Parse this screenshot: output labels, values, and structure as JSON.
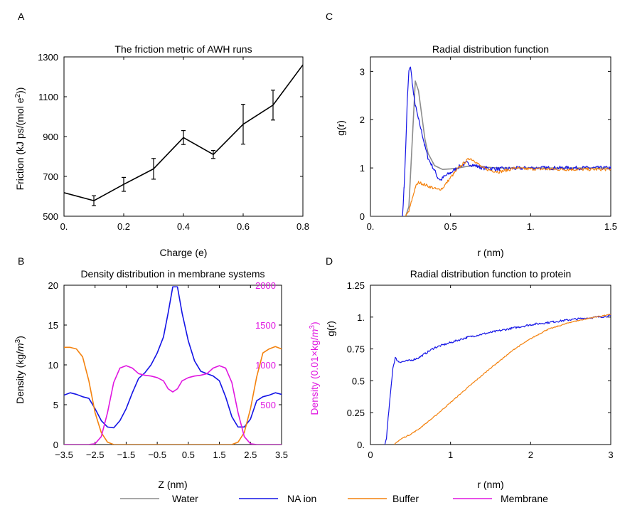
{
  "panels": [
    {
      "letter": "A",
      "chart_data": {
        "type": "line",
        "title": "The friction metric of AWH runs",
        "xlabel": "Charge (e)",
        "ylabel_parts": [
          "Friction (kJ ps/(mol e",
          "2",
          "))"
        ],
        "xlim": [
          0,
          0.8
        ],
        "ylim": [
          500,
          1300
        ],
        "x_ticks": [
          0,
          0.2,
          0.4,
          0.6,
          0.8
        ],
        "x_tick_labels": [
          "0.",
          "0.2",
          "0.4",
          "0.6",
          "0.8"
        ],
        "y_ticks": [
          500,
          700,
          900,
          1100,
          1300
        ],
        "y_tick_labels": [
          "500",
          "700",
          "900",
          "1100",
          "1300"
        ],
        "series": [
          {
            "color": "#000000",
            "x": [
              0,
              0.1,
              0.2,
              0.3,
              0.4,
              0.5,
              0.6,
              0.7,
              0.8
            ],
            "y": [
              618,
              578,
              660,
              738,
              895,
              810,
              962,
              1058,
              1260
            ],
            "err": [
              null,
              25,
              35,
              52,
              35,
              20,
              100,
              75,
              null
            ]
          }
        ]
      }
    },
    {
      "letter": "B",
      "chart_data": {
        "type": "line",
        "title": "Density distribution in membrane systems",
        "xlabel": "Z (nm)",
        "ylabel_parts": [
          "Density (kg/",
          "m",
          "3",
          ")"
        ],
        "y2label_parts": [
          "Density (0.01×kg/",
          "m",
          "3",
          ")"
        ],
        "y2color": "#e016e0",
        "xlim": [
          -3.5,
          3.5
        ],
        "ylim": [
          0,
          20
        ],
        "y2lim": [
          0,
          2000
        ],
        "x_ticks": [
          -3.5,
          -2.5,
          -1.5,
          -0.5,
          0.5,
          1.5,
          2.5,
          3.5
        ],
        "x_tick_labels": [
          "−3.5",
          "−2.5",
          "−1.5",
          "−0.5",
          "0.5",
          "1.5",
          "2.5",
          "3.5"
        ],
        "y_ticks": [
          0,
          5,
          10,
          15,
          20
        ],
        "y_tick_labels": [
          "0",
          "5",
          "10",
          "15",
          "20"
        ],
        "y2_ticks": [
          500,
          1000,
          1500,
          2000
        ],
        "y2_tick_labels": [
          "500",
          "1000",
          "1500",
          "2000"
        ],
        "series": [
          {
            "name": "NA ion",
            "color": "#1414e6",
            "x": [
              -3.5,
              -3.3,
              -3.1,
              -2.9,
              -2.7,
              -2.5,
              -2.3,
              -2.1,
              -1.9,
              -1.7,
              -1.5,
              -1.3,
              -1.1,
              -0.9,
              -0.7,
              -0.5,
              -0.3,
              -0.15,
              0,
              0.15,
              0.3,
              0.5,
              0.7,
              0.9,
              1.1,
              1.3,
              1.5,
              1.7,
              1.9,
              2.1,
              2.3,
              2.5,
              2.7,
              2.9,
              3.1,
              3.3,
              3.5
            ],
            "y": [
              6.2,
              6.5,
              6.3,
              6.0,
              5.8,
              4.5,
              3.0,
              2.2,
              2.1,
              3.0,
              4.5,
              6.5,
              8.3,
              9.0,
              10.0,
              11.5,
              13.5,
              16.5,
              19.8,
              19.8,
              16.5,
              13.0,
              10.5,
              9.2,
              8.9,
              8.6,
              8.0,
              6.0,
              3.5,
              2.2,
              2.2,
              3.2,
              5.5,
              6.0,
              6.2,
              6.5,
              6.3
            ]
          },
          {
            "name": "Buffer",
            "color": "#f4820e",
            "x": [
              -3.5,
              -3.3,
              -3.1,
              -2.9,
              -2.7,
              -2.5,
              -2.3,
              -2.1,
              -1.9,
              -1.7,
              -1.5,
              1.5,
              1.7,
              1.9,
              2.1,
              2.3,
              2.5,
              2.7,
              2.9,
              3.1,
              3.3,
              3.5
            ],
            "y": [
              12.2,
              12.2,
              12.0,
              11.0,
              8.0,
              4.0,
              1.5,
              0.3,
              0.0,
              0.0,
              0.0,
              0.0,
              0.0,
              0.0,
              0.3,
              1.5,
              4.5,
              8.5,
              11.5,
              12.0,
              12.3,
              12.0
            ]
          },
          {
            "name": "Membrane",
            "color": "#e016e0",
            "axis": "right",
            "x": [
              -3.5,
              -3.1,
              -2.7,
              -2.5,
              -2.3,
              -2.1,
              -1.9,
              -1.7,
              -1.5,
              -1.3,
              -1.1,
              -0.9,
              -0.7,
              -0.5,
              -0.3,
              -0.15,
              0,
              0.15,
              0.3,
              0.5,
              0.7,
              0.9,
              1.1,
              1.3,
              1.5,
              1.7,
              1.9,
              2.1,
              2.3,
              2.5,
              2.7,
              3.1,
              3.5
            ],
            "y": [
              0,
              0,
              0,
              10,
              100,
              400,
              780,
              960,
              990,
              960,
              890,
              870,
              860,
              840,
              800,
              700,
              660,
              700,
              800,
              840,
              860,
              870,
              890,
              960,
              990,
              960,
              780,
              400,
              100,
              10,
              0,
              0,
              0
            ]
          }
        ]
      }
    },
    {
      "letter": "C",
      "chart_data": {
        "type": "line",
        "title": "Radial distribution function",
        "xlabel": "r (nm)",
        "ylabel_parts": [
          "g(r)"
        ],
        "xlim": [
          0,
          1.5
        ],
        "ylim": [
          0,
          3.3
        ],
        "x_ticks": [
          0,
          0.5,
          1,
          1.5
        ],
        "x_tick_labels": [
          "0.",
          "0.5",
          "1.",
          "1.5"
        ],
        "y_ticks": [
          0,
          1,
          2,
          3
        ],
        "y_tick_labels": [
          "0",
          "1",
          "2",
          "3"
        ],
        "series": [
          {
            "name": "Water",
            "color": "#8c8c8c",
            "x": [
              0,
              0.22,
              0.24,
              0.26,
              0.28,
              0.3,
              0.32,
              0.34,
              0.36,
              0.4,
              0.45,
              0.5,
              0.55,
              0.6,
              0.65,
              0.7,
              0.8,
              1.0,
              1.2,
              1.5
            ],
            "y": [
              0,
              0,
              0.2,
              1.5,
              2.8,
              2.6,
              2.1,
              1.6,
              1.3,
              1.05,
              0.97,
              0.98,
              1.0,
              1.03,
              1.05,
              1.02,
              1.0,
              1.0,
              1.0,
              1.0
            ]
          },
          {
            "name": "NA ion",
            "color": "#1414e6",
            "noise": 0.04,
            "x": [
              0.2,
              0.21,
              0.22,
              0.23,
              0.24,
              0.25,
              0.26,
              0.27,
              0.28,
              0.3,
              0.32,
              0.34,
              0.36,
              0.4,
              0.42,
              0.44,
              0.46,
              0.5,
              0.55,
              0.6,
              0.65,
              0.7,
              0.8,
              1.0,
              1.2,
              1.5
            ],
            "y": [
              0,
              0.6,
              1.4,
              2.4,
              3.0,
              3.1,
              2.8,
              2.5,
              2.3,
              2.0,
              1.75,
              1.45,
              1.2,
              0.95,
              0.8,
              0.75,
              0.82,
              0.9,
              1.02,
              1.1,
              1.05,
              1.0,
              0.98,
              1.0,
              1.0,
              1.0
            ]
          },
          {
            "name": "Buffer",
            "color": "#f4820e",
            "noise": 0.03,
            "x": [
              0.22,
              0.24,
              0.26,
              0.28,
              0.3,
              0.32,
              0.34,
              0.38,
              0.42,
              0.45,
              0.5,
              0.55,
              0.6,
              0.62,
              0.65,
              0.7,
              0.75,
              0.8,
              0.85,
              0.9,
              0.95,
              1.0,
              1.2,
              1.5
            ],
            "y": [
              0,
              0.1,
              0.35,
              0.6,
              0.7,
              0.68,
              0.65,
              0.6,
              0.55,
              0.58,
              0.8,
              1.0,
              1.15,
              1.2,
              1.15,
              1.0,
              0.95,
              0.92,
              0.95,
              1.0,
              0.98,
              0.98,
              0.97,
              0.97
            ]
          }
        ]
      }
    },
    {
      "letter": "D",
      "chart_data": {
        "type": "line",
        "title": "Radial distribution function to protein",
        "xlabel": "r (nm)",
        "ylabel_parts": [
          "g(r)"
        ],
        "xlim": [
          0,
          3
        ],
        "ylim": [
          0,
          1.25
        ],
        "x_ticks": [
          0,
          1,
          2,
          3
        ],
        "x_tick_labels": [
          "0",
          "1",
          "2",
          "3"
        ],
        "y_ticks": [
          0,
          0.25,
          0.5,
          0.75,
          1,
          1.25
        ],
        "y_tick_labels": [
          "0.",
          "0.25",
          "0.5",
          "0.75",
          "1.",
          "1.25"
        ],
        "series": [
          {
            "name": "NA ion",
            "color": "#1414e6",
            "noise": 0.008,
            "x": [
              0.18,
              0.2,
              0.22,
              0.25,
              0.28,
              0.31,
              0.35,
              0.4,
              0.5,
              0.6,
              0.7,
              0.8,
              1.0,
              1.2,
              1.5,
              2.0,
              2.5,
              3.0
            ],
            "y": [
              0,
              0.05,
              0.2,
              0.4,
              0.6,
              0.68,
              0.65,
              0.65,
              0.66,
              0.68,
              0.72,
              0.76,
              0.8,
              0.84,
              0.88,
              0.94,
              0.98,
              1.01
            ]
          },
          {
            "name": "Buffer",
            "color": "#f4820e",
            "noise": 0.004,
            "x": [
              0.3,
              0.35,
              0.4,
              0.5,
              0.6,
              0.8,
              1.0,
              1.2,
              1.5,
              1.8,
              2.0,
              2.2,
              2.5,
              2.8,
              3.0
            ],
            "y": [
              0,
              0.03,
              0.05,
              0.08,
              0.12,
              0.22,
              0.33,
              0.44,
              0.6,
              0.75,
              0.83,
              0.9,
              0.96,
              1.0,
              1.02
            ]
          }
        ]
      }
    }
  ],
  "legend": [
    {
      "label": "Water",
      "color": "#8c8c8c"
    },
    {
      "label": "NA ion",
      "color": "#1414e6"
    },
    {
      "label": "Buffer",
      "color": "#f4820e"
    },
    {
      "label": "Membrane",
      "color": "#e016e0"
    }
  ]
}
